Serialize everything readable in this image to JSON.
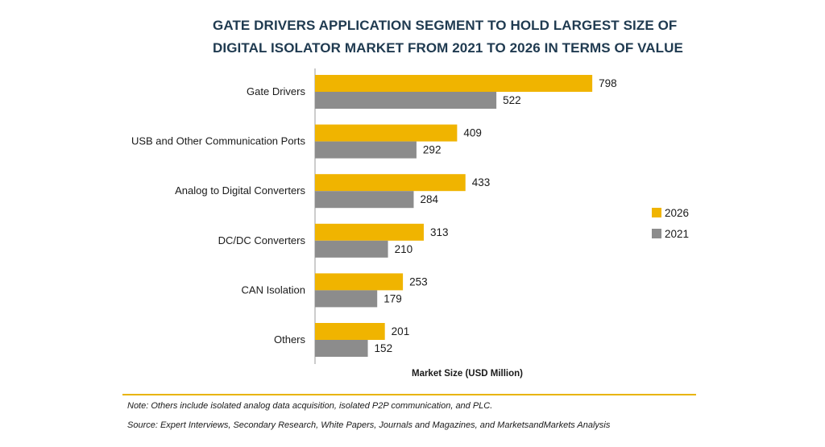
{
  "chart_data": {
    "type": "bar",
    "orientation": "horizontal",
    "title": "GATE DRIVERS APPLICATION SEGMENT TO HOLD LARGEST SIZE OF DIGITAL ISOLATOR MARKET FROM 2021 TO 2026 IN TERMS OF VALUE",
    "categories": [
      "Gate Drivers",
      "USB and Other Communication Ports",
      "Analog to Digital Converters",
      "DC/DC Converters",
      "CAN Isolation",
      "Others"
    ],
    "series": [
      {
        "name": "2026",
        "values": [
          798,
          409,
          433,
          313,
          253,
          201
        ],
        "color": "#F0B400"
      },
      {
        "name": "2021",
        "values": [
          522,
          292,
          284,
          210,
          179,
          152
        ],
        "color": "#8C8C8C"
      }
    ],
    "xlabel": "Market Size (USD Million)",
    "ylabel": "",
    "xlim": [
      0,
      800
    ],
    "grid": false,
    "data_labels": true,
    "legend_position": "right"
  },
  "notes": {
    "note": "Note: Others include isolated analog data acquisition, isolated P2P communication, and PLC.",
    "source": "Source: Expert Interviews, Secondary Research, White Papers, Journals and Magazines, and MarketsandMarkets Analysis"
  },
  "colors": {
    "title": "#1f3a50",
    "accent_rule": "#e8b400"
  }
}
